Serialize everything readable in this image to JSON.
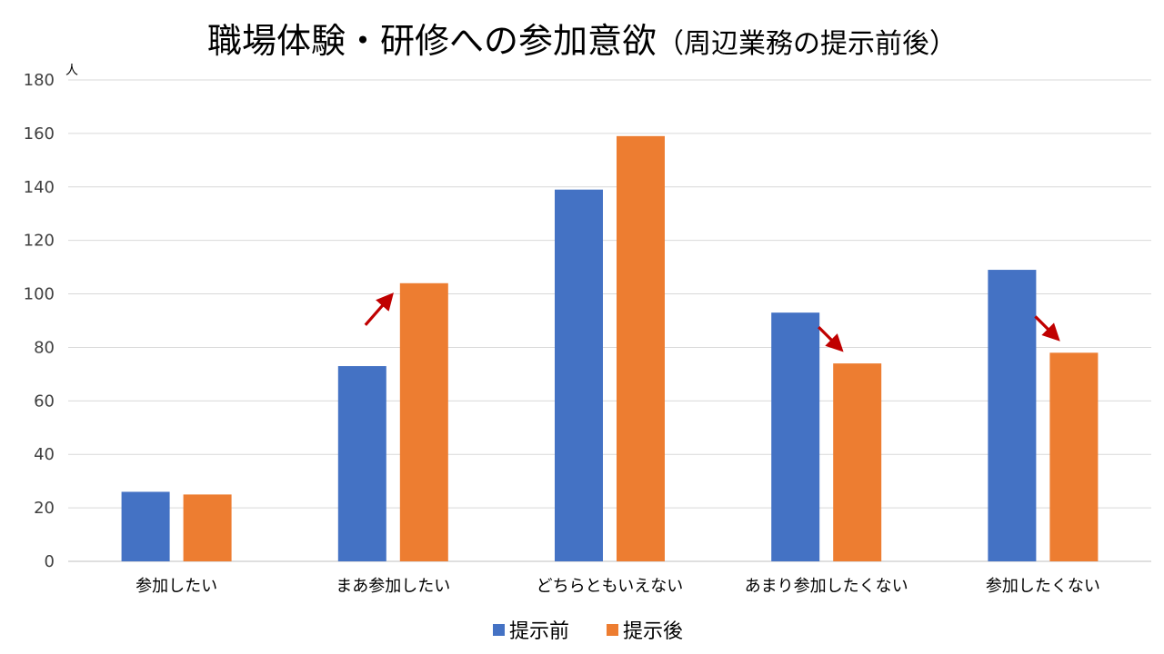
{
  "chart_data": {
    "type": "bar",
    "title": "職場体験・研修への参加意欲",
    "subtitle": "（周辺業務の提示前後）",
    "y_unit": "人",
    "ylim": [
      0,
      180
    ],
    "yticks": [
      0,
      20,
      40,
      60,
      80,
      100,
      120,
      140,
      160,
      180
    ],
    "grid": true,
    "legend_position": "bottom",
    "categories": [
      "参加したい",
      "まあ参加したい",
      "どちらともいえない",
      "あまり参加したくない",
      "参加したくない"
    ],
    "series": [
      {
        "name": "提示前",
        "color": "#4472C4",
        "values": [
          26,
          73,
          139,
          93,
          109
        ]
      },
      {
        "name": "提示後",
        "color": "#ED7D31",
        "values": [
          25,
          104,
          159,
          74,
          78
        ]
      }
    ],
    "annotations": [
      {
        "category": "まあ参加したい",
        "direction": "up",
        "color": "#C00000"
      },
      {
        "category": "あまり参加したくない",
        "direction": "down",
        "color": "#C00000"
      },
      {
        "category": "参加したくない",
        "direction": "down",
        "color": "#C00000"
      }
    ]
  }
}
